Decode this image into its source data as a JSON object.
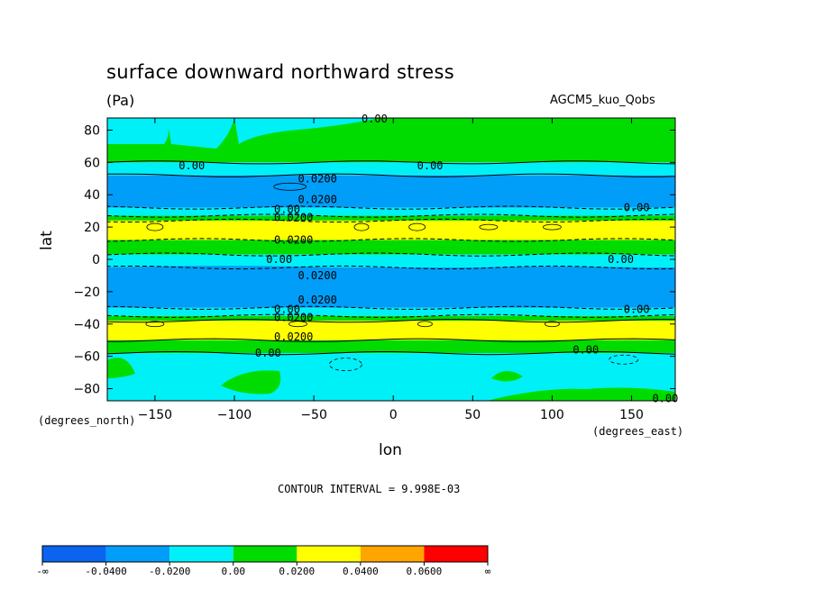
{
  "title": "surface downward northward stress",
  "units": "(Pa)",
  "model": "AGCM5_kuo_Qobs",
  "contour_interval": "CONTOUR INTERVAL = 9.998E-03",
  "axis_units": {
    "y": "(degrees_north)",
    "x": "(degrees_east)"
  },
  "chart_data": {
    "type": "heatmap",
    "xlabel": "lon",
    "ylabel": "lat",
    "xlim": [
      -180,
      177.5
    ],
    "ylim": [
      -87.5,
      87.5
    ],
    "x_ticks": [
      -150,
      -100,
      -50,
      0,
      50,
      100,
      150
    ],
    "y_ticks": [
      80,
      60,
      40,
      20,
      0,
      -20,
      -40,
      -60,
      -80
    ],
    "colors": {
      "lt_-0.04": "#0a64f0",
      "-0.04_-0.02": "#009ef8",
      "-0.02_0": "#00f0f8",
      "0_0.02": "#00dc00",
      "0.02_0.04": "#ffff00",
      "0.04_0.06": "#ffa500",
      "gt_0.06": "#ff0000"
    },
    "zonal_bands": [
      {
        "lat_from": 87.5,
        "lat_to": 60,
        "range": "0_0.02"
      },
      {
        "lat_from": 60,
        "lat_to": 52,
        "range": "-0.02_0"
      },
      {
        "lat_from": 52,
        "lat_to": 32,
        "range": "-0.04_-0.02"
      },
      {
        "lat_from": 32,
        "lat_to": 27,
        "range": "-0.02_0"
      },
      {
        "lat_from": 27,
        "lat_to": 24,
        "range": "0_0.02"
      },
      {
        "lat_from": 24,
        "lat_to": 12,
        "range": "0.02_0.04"
      },
      {
        "lat_from": 12,
        "lat_to": 3,
        "range": "0_0.02"
      },
      {
        "lat_from": 3,
        "lat_to": -5,
        "range": "-0.02_0"
      },
      {
        "lat_from": -5,
        "lat_to": -30,
        "range": "-0.04_-0.02"
      },
      {
        "lat_from": -30,
        "lat_to": -35,
        "range": "-0.02_0"
      },
      {
        "lat_from": -35,
        "lat_to": -38,
        "range": "0_0.02"
      },
      {
        "lat_from": -38,
        "lat_to": -50,
        "range": "0.02_0.04"
      },
      {
        "lat_from": -50,
        "lat_to": -58,
        "range": "0_0.02"
      },
      {
        "lat_from": -58,
        "lat_to": -87.5,
        "range": "-0.02_0"
      }
    ],
    "contour_labels": [
      {
        "text": "0.00",
        "lon": -20,
        "lat": 87
      },
      {
        "text": "0.00",
        "lon": -135,
        "lat": 58
      },
      {
        "text": "0.00",
        "lon": 15,
        "lat": 58
      },
      {
        "text": "0.0200",
        "lon": -60,
        "lat": 50
      },
      {
        "text": "0.0200",
        "lon": -60,
        "lat": 37
      },
      {
        "text": "0.00",
        "lon": -75,
        "lat": 31
      },
      {
        "text": "0.00",
        "lon": 145,
        "lat": 32
      },
      {
        "text": "0.0200",
        "lon": -75,
        "lat": 26
      },
      {
        "text": "0.0200",
        "lon": -75,
        "lat": 12
      },
      {
        "text": "0.00",
        "lon": -80,
        "lat": 0
      },
      {
        "text": "0.00",
        "lon": 135,
        "lat": 0
      },
      {
        "text": "0.0200",
        "lon": -60,
        "lat": -10
      },
      {
        "text": "0.0200",
        "lon": -60,
        "lat": -25
      },
      {
        "text": "0.00",
        "lon": -75,
        "lat": -31
      },
      {
        "text": "0.00",
        "lon": 145,
        "lat": -31
      },
      {
        "text": "0.0200",
        "lon": -75,
        "lat": -36
      },
      {
        "text": "0.0200",
        "lon": -75,
        "lat": -48
      },
      {
        "text": "0.00",
        "lon": -87,
        "lat": -58
      },
      {
        "text": "0.00",
        "lon": 113,
        "lat": -56
      },
      {
        "text": "0.00",
        "lon": 163,
        "lat": -86
      }
    ]
  },
  "colorbar": {
    "colors": [
      "#0a64f0",
      "#009ef8",
      "#00f0f8",
      "#00dc00",
      "#ffff00",
      "#ffa500",
      "#ff0000"
    ],
    "labels": [
      "-∞",
      "-0.0400",
      "-0.0200",
      "0.00",
      "0.0200",
      "0.0400",
      "0.0600",
      "∞"
    ]
  }
}
